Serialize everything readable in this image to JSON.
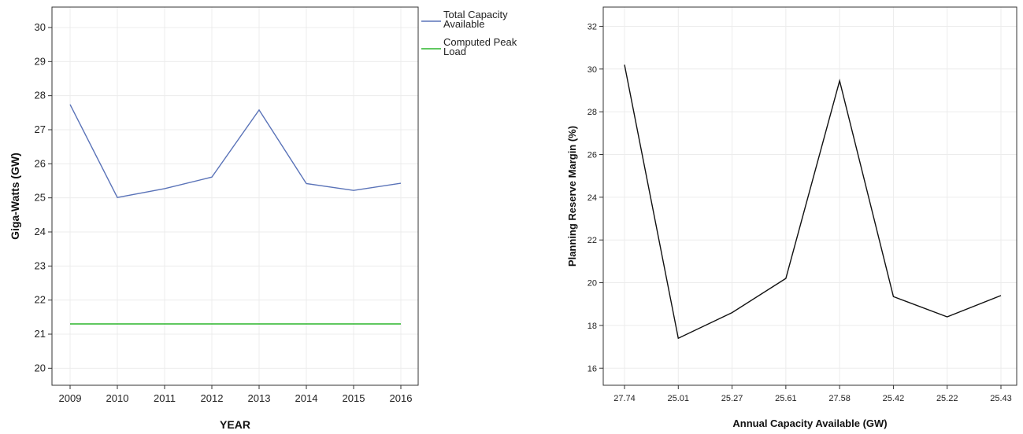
{
  "chart_data": [
    {
      "type": "line",
      "xlabel": "YEAR",
      "ylabel": "Giga-Watts (GW)",
      "x": [
        "2009",
        "2010",
        "2011",
        "2012",
        "2013",
        "2014",
        "2015",
        "2016"
      ],
      "ylim": [
        19.5,
        30.6
      ],
      "yticks": [
        20,
        21,
        22,
        23,
        24,
        25,
        26,
        27,
        28,
        29,
        30
      ],
      "grid": true,
      "legend": "right",
      "series": [
        {
          "name": "Total Capacity Available",
          "name_lines": [
            "Total Capacity",
            "Available"
          ],
          "color": "#5a73b8",
          "values": [
            27.74,
            25.01,
            25.27,
            25.61,
            27.58,
            25.42,
            25.22,
            25.43
          ]
        },
        {
          "name": "Computed Peak Load",
          "name_lines": [
            "Computed Peak",
            "Load"
          ],
          "color": "#2bb52b",
          "values": [
            21.3,
            21.3,
            21.3,
            21.3,
            21.3,
            21.3,
            21.3,
            21.3
          ]
        }
      ]
    },
    {
      "type": "line",
      "xlabel": "Annual Capacity Available (GW)",
      "ylabel": "Planning Reserve Margin (%)",
      "x": [
        "27.74",
        "25.01",
        "25.27",
        "25.61",
        "27.58",
        "25.42",
        "25.22",
        "25.43"
      ],
      "ylim": [
        15.2,
        32.9
      ],
      "yticks": [
        16,
        18,
        20,
        22,
        24,
        26,
        28,
        30,
        32
      ],
      "grid": true,
      "series": [
        {
          "color": "#111111",
          "values": [
            30.2,
            17.4,
            18.6,
            20.2,
            29.45,
            19.35,
            18.4,
            19.4
          ]
        }
      ]
    }
  ]
}
